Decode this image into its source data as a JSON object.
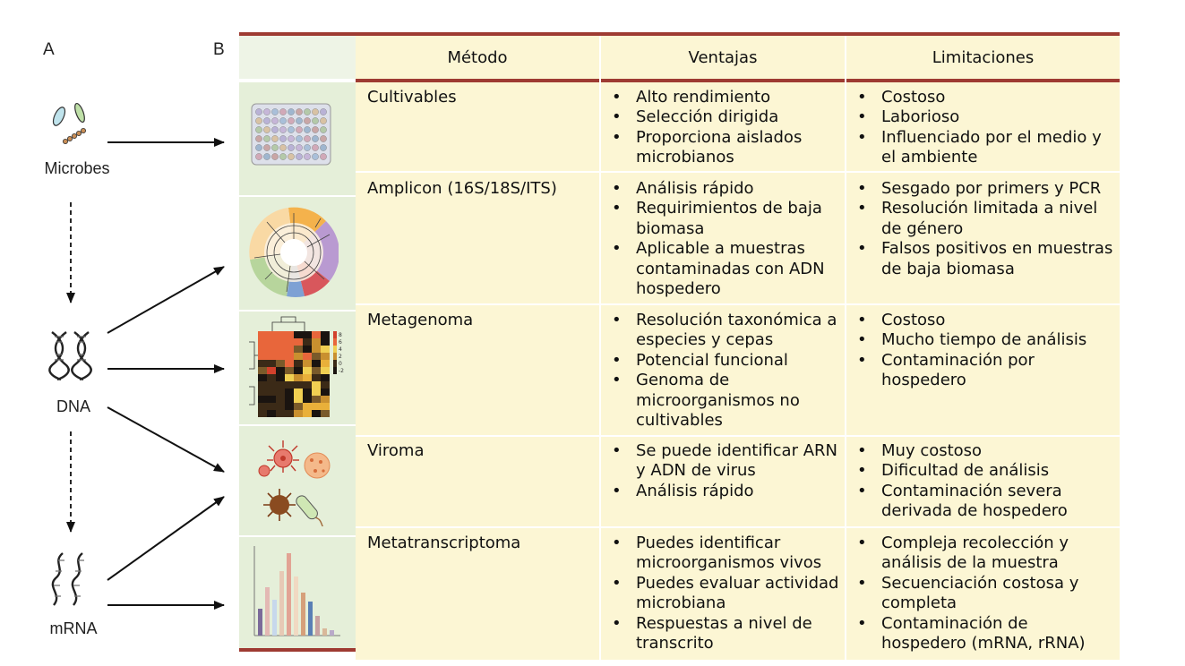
{
  "panels": {
    "a": "A",
    "b": "B"
  },
  "nodes": {
    "microbes": "Microbes",
    "dna": "DNA",
    "mrna": "mRNA"
  },
  "table": {
    "headers": {
      "method": "Método",
      "advantages": "Ventajas",
      "limitations": "Limitaciones"
    },
    "rows": [
      {
        "method": "Cultivables",
        "icon": "multiwell-plate-icon",
        "advantages": [
          "Alto rendimiento",
          "Selección dirigida",
          "Proporciona aislados microbianos"
        ],
        "limitations": [
          "Costoso",
          "Laborioso",
          "Influenciado por el medio y el ambiente"
        ]
      },
      {
        "method": "Amplicon (16S/18S/ITS)",
        "icon": "circular-phylogenetic-tree-icon",
        "advantages": [
          "Análisis rápido",
          "Requirimientos de baja biomasa",
          "Aplicable a muestras contaminadas con ADN hospedero"
        ],
        "limitations": [
          "Sesgado por primers y PCR",
          "Resolución limitada a nivel de género",
          "Falsos positivos en muestras de baja biomasa"
        ]
      },
      {
        "method": "Metagenoma",
        "icon": "heatmap-icon",
        "advantages": [
          "Resolución taxonómica a especies y cepas",
          "Potencial funcional",
          "Genoma de microorganismos no cultivables"
        ],
        "limitations": [
          "Costoso",
          "Mucho tiempo de análisis",
          "Contaminación por hospedero"
        ]
      },
      {
        "method": "Viroma",
        "icon": "virus-particles-icon",
        "advantages": [
          "Se puede identificar ARN y ADN de virus",
          "Análisis rápido"
        ],
        "limitations": [
          "Muy costoso",
          "Dificultad de análisis",
          "Contaminación severa derivada de hospedero"
        ]
      },
      {
        "method": "Metatranscriptoma",
        "icon": "bar-chart-icon",
        "advantages": [
          "Puedes identificar microorganismos vivos",
          "Puedes evaluar actividad microbiana",
          "Respuestas a nivel de transcrito"
        ],
        "limitations": [
          "Compleja recolección y análisis de la muestra",
          "Secuenciación costosa y completa",
          "Contaminación de hospedero (mRNA, rRNA)"
        ]
      }
    ]
  },
  "heatmap_scale": [
    "8",
    "6",
    "4",
    "2",
    "0",
    "-2"
  ],
  "colors": {
    "rule": "#9e3b32",
    "cell": "#fcf6d4",
    "image_column": "#e5efd9"
  }
}
